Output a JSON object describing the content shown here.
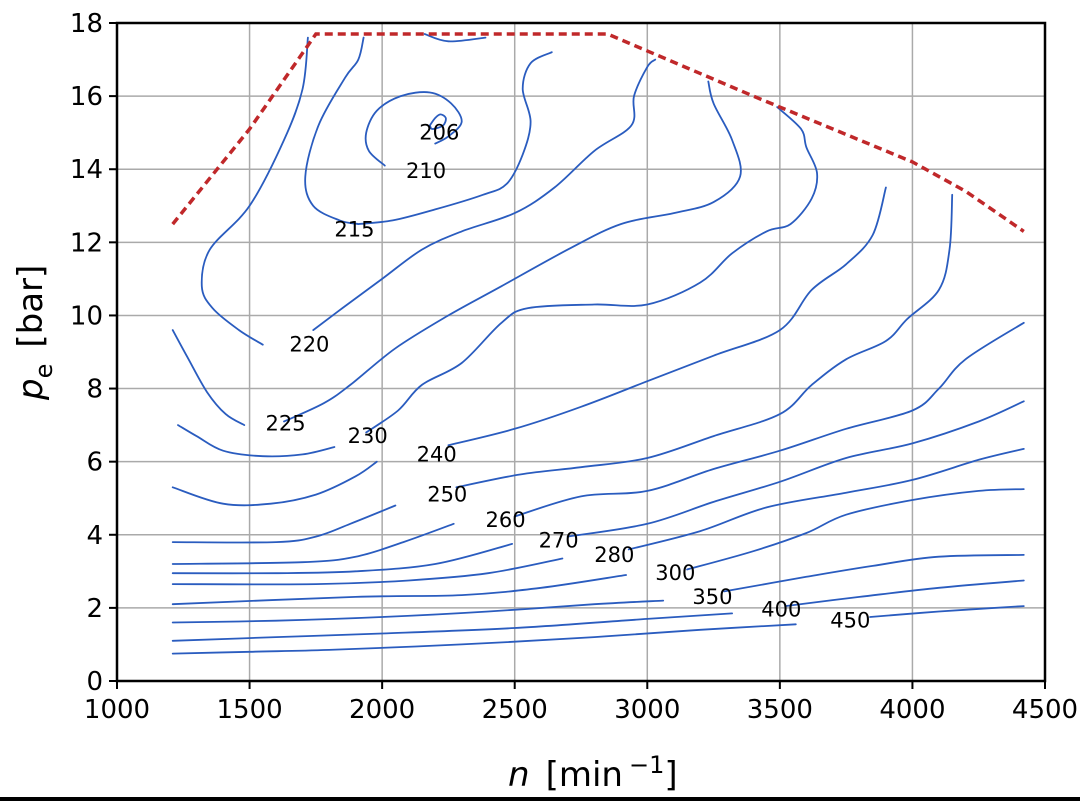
{
  "chart_data": {
    "type": "contour",
    "xlabel": "n",
    "xlabel_unit": "[min",
    "xlabel_exp": "−1",
    "xlabel_unit_close": "]",
    "ylabel": "p",
    "ylabel_sub": "e",
    "ylabel_unit": "[bar]",
    "xlim": [
      1000,
      4500
    ],
    "ylim": [
      0,
      18
    ],
    "xticks": [
      1000,
      1500,
      2000,
      2500,
      3000,
      3500,
      4000,
      4500
    ],
    "yticks": [
      0,
      2,
      4,
      6,
      8,
      10,
      12,
      14,
      16,
      18
    ],
    "grid": true,
    "colors": {
      "contour": "#2a5cbf",
      "full_load": "#c0282a",
      "grid": "#aaaaaa",
      "frame": "#000000"
    },
    "full_load_line": [
      [
        1210,
        12.5
      ],
      [
        1500,
        15.1
      ],
      [
        1750,
        17.7
      ],
      [
        2850,
        17.7
      ],
      [
        3400,
        16.0
      ],
      [
        4000,
        14.2
      ],
      [
        4200,
        13.4
      ],
      [
        4420,
        12.3
      ]
    ],
    "contours": [
      {
        "level": "206",
        "label_at": [
          2140,
          15.0
        ],
        "segments": [
          [
            [
              2180,
              15.2
            ],
            [
              2200,
              15.4
            ],
            [
              2220,
              15.5
            ],
            [
              2240,
              15.4
            ],
            [
              2230,
              15.2
            ],
            [
              2190,
              15.1
            ],
            [
              2180,
              15.2
            ]
          ]
        ]
      },
      {
        "level": "210",
        "label_at": [
          2090,
          13.95
        ],
        "segments": [
          [
            [
              2010,
              14.1
            ],
            [
              1950,
              14.5
            ],
            [
              1940,
              15.0
            ],
            [
              1980,
              15.6
            ],
            [
              2070,
              16.0
            ],
            [
              2180,
              16.1
            ],
            [
              2260,
              15.8
            ],
            [
              2300,
              15.3
            ],
            [
              2250,
              14.9
            ],
            [
              2200,
              14.7
            ]
          ]
        ]
      },
      {
        "level": "215",
        "label_at": [
          1820,
          12.35
        ],
        "segments": [
          [
            [
              1910,
              12.5
            ],
            [
              1840,
              12.6
            ],
            [
              1740,
              13.0
            ],
            [
              1710,
              13.8
            ],
            [
              1760,
              15.2
            ],
            [
              1860,
              16.5
            ],
            [
              1910,
              17.0
            ],
            [
              1930,
              17.6
            ]
          ],
          [
            [
              1910,
              12.5
            ],
            [
              2040,
              12.6
            ],
            [
              2200,
              12.9
            ],
            [
              2380,
              13.3
            ],
            [
              2470,
              13.6
            ],
            [
              2530,
              14.4
            ],
            [
              2560,
              15.3
            ],
            [
              2530,
              16.2
            ],
            [
              2560,
              16.9
            ],
            [
              2640,
              17.2
            ]
          ],
          [
            [
              2160,
              17.7
            ],
            [
              2250,
              17.5
            ],
            [
              2390,
              17.6
            ]
          ]
        ]
      },
      {
        "level": "220",
        "label_at": [
          1650,
          9.2
        ],
        "segments": [
          [
            [
              1550,
              9.2
            ],
            [
              1460,
              9.6
            ],
            [
              1360,
              10.2
            ],
            [
              1320,
              10.8
            ],
            [
              1350,
              11.8
            ],
            [
              1500,
              13.0
            ],
            [
              1630,
              14.8
            ],
            [
              1700,
              16.2
            ],
            [
              1720,
              17.6
            ]
          ],
          [
            [
              1740,
              9.6
            ],
            [
              1850,
              10.2
            ],
            [
              2000,
              11.0
            ],
            [
              2150,
              11.8
            ],
            [
              2300,
              12.3
            ],
            [
              2500,
              12.8
            ],
            [
              2650,
              13.5
            ],
            [
              2800,
              14.5
            ],
            [
              2940,
              15.2
            ],
            [
              2950,
              16.0
            ],
            [
              3000,
              16.8
            ],
            [
              3030,
              17.0
            ]
          ]
        ]
      },
      {
        "level": "225",
        "label_at": [
          1560,
          7.05
        ],
        "segments": [
          [
            [
              1480,
              7.0
            ],
            [
              1410,
              7.3
            ],
            [
              1340,
              7.9
            ],
            [
              1270,
              8.8
            ],
            [
              1210,
              9.6
            ]
          ],
          [
            [
              1630,
              7.1
            ],
            [
              1780,
              7.6
            ],
            [
              1880,
              8.1
            ],
            [
              2050,
              9.1
            ],
            [
              2250,
              10.0
            ],
            [
              2450,
              10.8
            ],
            [
              2700,
              11.8
            ],
            [
              2900,
              12.5
            ],
            [
              3100,
              12.8
            ],
            [
              3250,
              13.1
            ],
            [
              3350,
              13.8
            ],
            [
              3320,
              14.8
            ],
            [
              3250,
              15.8
            ],
            [
              3230,
              16.4
            ]
          ]
        ]
      },
      {
        "level": "230",
        "label_at": [
          1870,
          6.7
        ],
        "segments": [
          [
            [
              1820,
              6.4
            ],
            [
              1700,
              6.2
            ],
            [
              1550,
              6.15
            ],
            [
              1400,
              6.3
            ],
            [
              1300,
              6.7
            ],
            [
              1230,
              7.0
            ]
          ],
          [
            [
              1940,
              6.8
            ],
            [
              2060,
              7.4
            ],
            [
              2150,
              8.1
            ],
            [
              2300,
              8.7
            ],
            [
              2450,
              9.8
            ],
            [
              2550,
              10.2
            ],
            [
              2800,
              10.3
            ],
            [
              3000,
              10.3
            ],
            [
              3200,
              10.9
            ],
            [
              3320,
              11.7
            ],
            [
              3450,
              12.3
            ],
            [
              3540,
              12.5
            ],
            [
              3620,
              13.2
            ],
            [
              3640,
              13.9
            ],
            [
              3600,
              14.6
            ],
            [
              3580,
              15.1
            ],
            [
              3490,
              15.7
            ]
          ]
        ]
      },
      {
        "level": "240",
        "label_at": [
          2130,
          6.2
        ],
        "segments": [
          [
            [
              1980,
              6.0
            ],
            [
              1900,
              5.6
            ],
            [
              1750,
              5.1
            ],
            [
              1580,
              4.85
            ],
            [
              1400,
              4.85
            ],
            [
              1210,
              5.3
            ]
          ],
          [
            [
              2250,
              6.45
            ],
            [
              2500,
              6.9
            ],
            [
              2750,
              7.5
            ],
            [
              3000,
              8.2
            ],
            [
              3250,
              8.9
            ],
            [
              3500,
              9.6
            ],
            [
              3620,
              10.7
            ],
            [
              3750,
              11.4
            ],
            [
              3850,
              12.2
            ],
            [
              3900,
              13.5
            ]
          ]
        ]
      },
      {
        "level": "250",
        "label_at": [
          2170,
          5.1
        ],
        "segments": [
          [
            [
              2050,
              4.8
            ],
            [
              1880,
              4.3
            ],
            [
              1750,
              3.95
            ],
            [
              1600,
              3.8
            ],
            [
              1210,
              3.8
            ]
          ],
          [
            [
              2280,
              5.3
            ],
            [
              2520,
              5.65
            ],
            [
              2750,
              5.85
            ],
            [
              3000,
              6.1
            ],
            [
              3250,
              6.7
            ],
            [
              3500,
              7.3
            ],
            [
              3620,
              8.1
            ],
            [
              3750,
              8.8
            ],
            [
              3900,
              9.3
            ],
            [
              3980,
              9.9
            ],
            [
              4100,
              10.7
            ],
            [
              4140,
              11.8
            ],
            [
              4150,
              13.3
            ]
          ]
        ]
      },
      {
        "level": "260",
        "label_at": [
          2390,
          4.4
        ],
        "segments": [
          [
            [
              2270,
              4.3
            ],
            [
              2080,
              3.8
            ],
            [
              1900,
              3.4
            ],
            [
              1700,
              3.25
            ],
            [
              1210,
              3.2
            ]
          ],
          [
            [
              2500,
              4.5
            ],
            [
              2750,
              5.05
            ],
            [
              3000,
              5.2
            ],
            [
              3250,
              5.8
            ],
            [
              3500,
              6.3
            ],
            [
              3750,
              6.9
            ],
            [
              4000,
              7.4
            ],
            [
              4100,
              8.0
            ],
            [
              4200,
              8.8
            ],
            [
              4420,
              9.8
            ]
          ]
        ]
      },
      {
        "level": "270",
        "label_at": [
          2590,
          3.85
        ],
        "segments": [
          [
            [
              2490,
              3.75
            ],
            [
              2200,
              3.2
            ],
            [
              1900,
              3.0
            ],
            [
              1600,
              2.95
            ],
            [
              1210,
              2.95
            ]
          ],
          [
            [
              2700,
              3.95
            ],
            [
              3000,
              4.3
            ],
            [
              3250,
              4.9
            ],
            [
              3500,
              5.45
            ],
            [
              3750,
              6.1
            ],
            [
              4000,
              6.5
            ],
            [
              4250,
              7.1
            ],
            [
              4420,
              7.65
            ]
          ]
        ]
      },
      {
        "level": "280",
        "label_at": [
          2800,
          3.45
        ],
        "segments": [
          [
            [
              2680,
              3.35
            ],
            [
              2400,
              2.95
            ],
            [
              2100,
              2.75
            ],
            [
              1750,
              2.65
            ],
            [
              1210,
              2.65
            ]
          ],
          [
            [
              2930,
              3.6
            ],
            [
              3200,
              4.1
            ],
            [
              3450,
              4.75
            ],
            [
              3750,
              5.15
            ],
            [
              4000,
              5.5
            ],
            [
              4250,
              6.05
            ],
            [
              4420,
              6.35
            ]
          ]
        ]
      },
      {
        "level": "300",
        "label_at": [
          3030,
          2.95
        ],
        "segments": [
          [
            [
              2920,
              2.9
            ],
            [
              2600,
              2.55
            ],
            [
              2300,
              2.35
            ],
            [
              1900,
              2.3
            ],
            [
              1210,
              2.1
            ]
          ],
          [
            [
              3150,
              3.05
            ],
            [
              3400,
              3.55
            ],
            [
              3600,
              4.05
            ],
            [
              3750,
              4.55
            ],
            [
              4000,
              4.95
            ],
            [
              4250,
              5.2
            ],
            [
              4420,
              5.25
            ]
          ]
        ]
      },
      {
        "level": "350",
        "label_at": [
          3170,
          2.3
        ],
        "segments": [
          [
            [
              3060,
              2.2
            ],
            [
              2800,
              2.1
            ],
            [
              2400,
              1.9
            ],
            [
              2000,
              1.75
            ],
            [
              1600,
              1.65
            ],
            [
              1210,
              1.6
            ]
          ],
          [
            [
              3290,
              2.45
            ],
            [
              3600,
              2.85
            ],
            [
              3850,
              3.15
            ],
            [
              4100,
              3.4
            ],
            [
              4420,
              3.45
            ]
          ]
        ]
      },
      {
        "level": "400",
        "label_at": [
          3430,
          1.95
        ],
        "segments": [
          [
            [
              3320,
              1.85
            ],
            [
              3000,
              1.7
            ],
            [
              2500,
              1.45
            ],
            [
              2000,
              1.3
            ],
            [
              1600,
              1.2
            ],
            [
              1210,
              1.1
            ]
          ],
          [
            [
              3520,
              2.05
            ],
            [
              3800,
              2.3
            ],
            [
              4100,
              2.55
            ],
            [
              4420,
              2.75
            ]
          ]
        ]
      },
      {
        "level": "450",
        "label_at": [
          3690,
          1.65
        ],
        "segments": [
          [
            [
              3560,
              1.55
            ],
            [
              3200,
              1.4
            ],
            [
              2800,
              1.2
            ],
            [
              2300,
              1.0
            ],
            [
              1800,
              0.85
            ],
            [
              1500,
              0.8
            ],
            [
              1210,
              0.75
            ]
          ],
          [
            [
              3840,
              1.75
            ],
            [
              4100,
              1.9
            ],
            [
              4420,
              2.05
            ]
          ]
        ]
      }
    ]
  }
}
